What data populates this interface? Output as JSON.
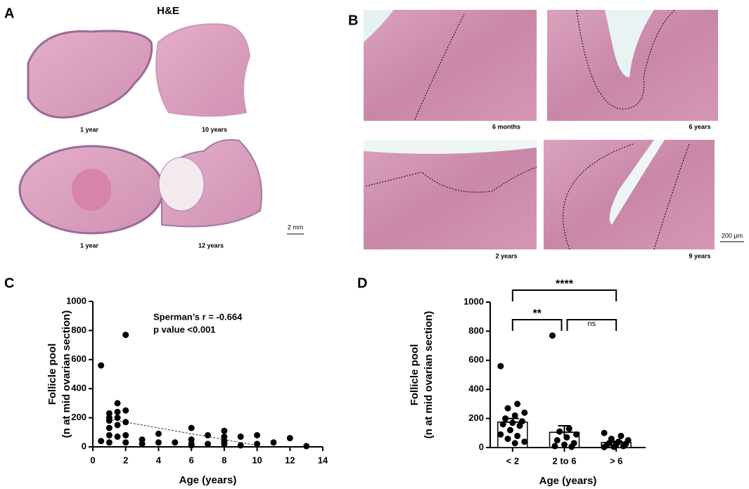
{
  "panels": {
    "a": {
      "label": "A",
      "stain": "H&E",
      "captions": [
        "1 year",
        "10 years",
        "1 year",
        "12 years"
      ],
      "scale": "2 mm"
    },
    "b": {
      "label": "B",
      "captions": [
        "6 months",
        "6 years",
        "2 years",
        "9 years"
      ],
      "scale": "200 µm"
    },
    "c": {
      "label": "C"
    },
    "d": {
      "label": "D"
    }
  },
  "chart_data": [
    {
      "type": "scatter",
      "xlabel": "Age (years)",
      "ylabel": [
        "Follicle pool",
        "(n at mid ovarian section)"
      ],
      "annotations": [
        "Sperman’s r = -0.664",
        "p value <0.001"
      ],
      "x": [
        0.5,
        0.5,
        1,
        1,
        1,
        1,
        1,
        1,
        1.5,
        1.5,
        1.5,
        1.5,
        1.5,
        2,
        2,
        2,
        2,
        2,
        3,
        3,
        4,
        4,
        5,
        6,
        6,
        6,
        6,
        7,
        7,
        8,
        8,
        8,
        8,
        9,
        9,
        10,
        10,
        11,
        12,
        13
      ],
      "values": [
        560,
        40,
        230,
        200,
        180,
        130,
        80,
        30,
        300,
        240,
        200,
        150,
        70,
        770,
        250,
        170,
        80,
        30,
        50,
        20,
        90,
        30,
        30,
        130,
        50,
        20,
        10,
        80,
        20,
        110,
        70,
        40,
        20,
        70,
        10,
        80,
        20,
        30,
        60,
        5
      ],
      "color": "#000000",
      "trend": {
        "x": [
          1,
          10
        ],
        "y": [
          190,
          10
        ]
      },
      "xlim": [
        0,
        14
      ],
      "xticks": [
        0,
        2,
        4,
        6,
        8,
        10,
        12,
        14
      ],
      "ylim": [
        0,
        1000
      ],
      "yticks": [
        0,
        200,
        400,
        600,
        800,
        1000
      ]
    },
    {
      "type": "bar",
      "xlabel": "Age (years)",
      "ylabel": [
        "Follicle pool",
        "(n at mid ovarian section)"
      ],
      "categories": [
        "< 2",
        "2 to 6",
        "> 6"
      ],
      "values": [
        175,
        105,
        35
      ],
      "errors": [
        25,
        45,
        8
      ],
      "points": [
        [
          560,
          300,
          270,
          240,
          220,
          200,
          180,
          170,
          160,
          150,
          120,
          90,
          80,
          60,
          40,
          30
        ],
        [
          770,
          130,
          110,
          90,
          70,
          50,
          30,
          20,
          10,
          5
        ],
        [
          100,
          80,
          60,
          50,
          40,
          30,
          25,
          20,
          15,
          10,
          5,
          3
        ]
      ],
      "significance": [
        "**",
        "ns",
        "****"
      ],
      "color": "#000000",
      "ylim": [
        0,
        1000
      ],
      "yticks": [
        0,
        200,
        400,
        600,
        800,
        1000
      ]
    }
  ]
}
